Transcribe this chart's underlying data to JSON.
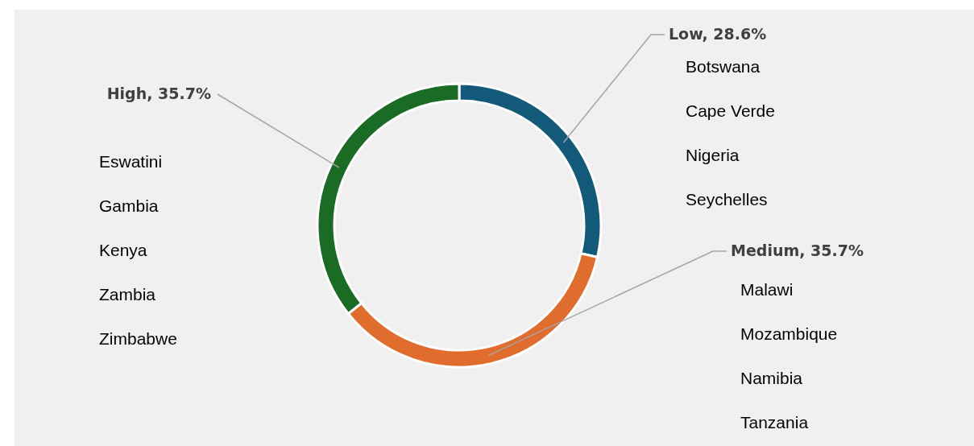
{
  "chart_data": {
    "type": "donut",
    "categories": [
      "Low",
      "Medium",
      "High"
    ],
    "values": [
      28.6,
      35.7,
      35.7
    ],
    "value_labels": [
      "28.6%",
      "35.7%",
      "35.7%"
    ],
    "colors": [
      "#135a7a",
      "#e06c2e",
      "#1a6b23"
    ],
    "annotations": [
      {
        "text": "Botswana",
        "x": "Low"
      },
      {
        "text": "Cape Verde",
        "x": "Low"
      },
      {
        "text": "Nigeria",
        "x": "Low"
      },
      {
        "text": "Seychelles",
        "x": "Low"
      },
      {
        "text": "Malawi",
        "x": "Medium"
      },
      {
        "text": "Mozambique",
        "x": "Medium"
      },
      {
        "text": "Namibia",
        "x": "Medium"
      },
      {
        "text": "Tanzania",
        "x": "Medium"
      },
      {
        "text": "Eswatini",
        "x": "High"
      },
      {
        "text": "Gambia",
        "x": "High"
      },
      {
        "text": "Kenya",
        "x": "High"
      },
      {
        "text": "Zambia",
        "x": "High"
      },
      {
        "text": "Zimbabwe",
        "x": "High"
      }
    ]
  }
}
